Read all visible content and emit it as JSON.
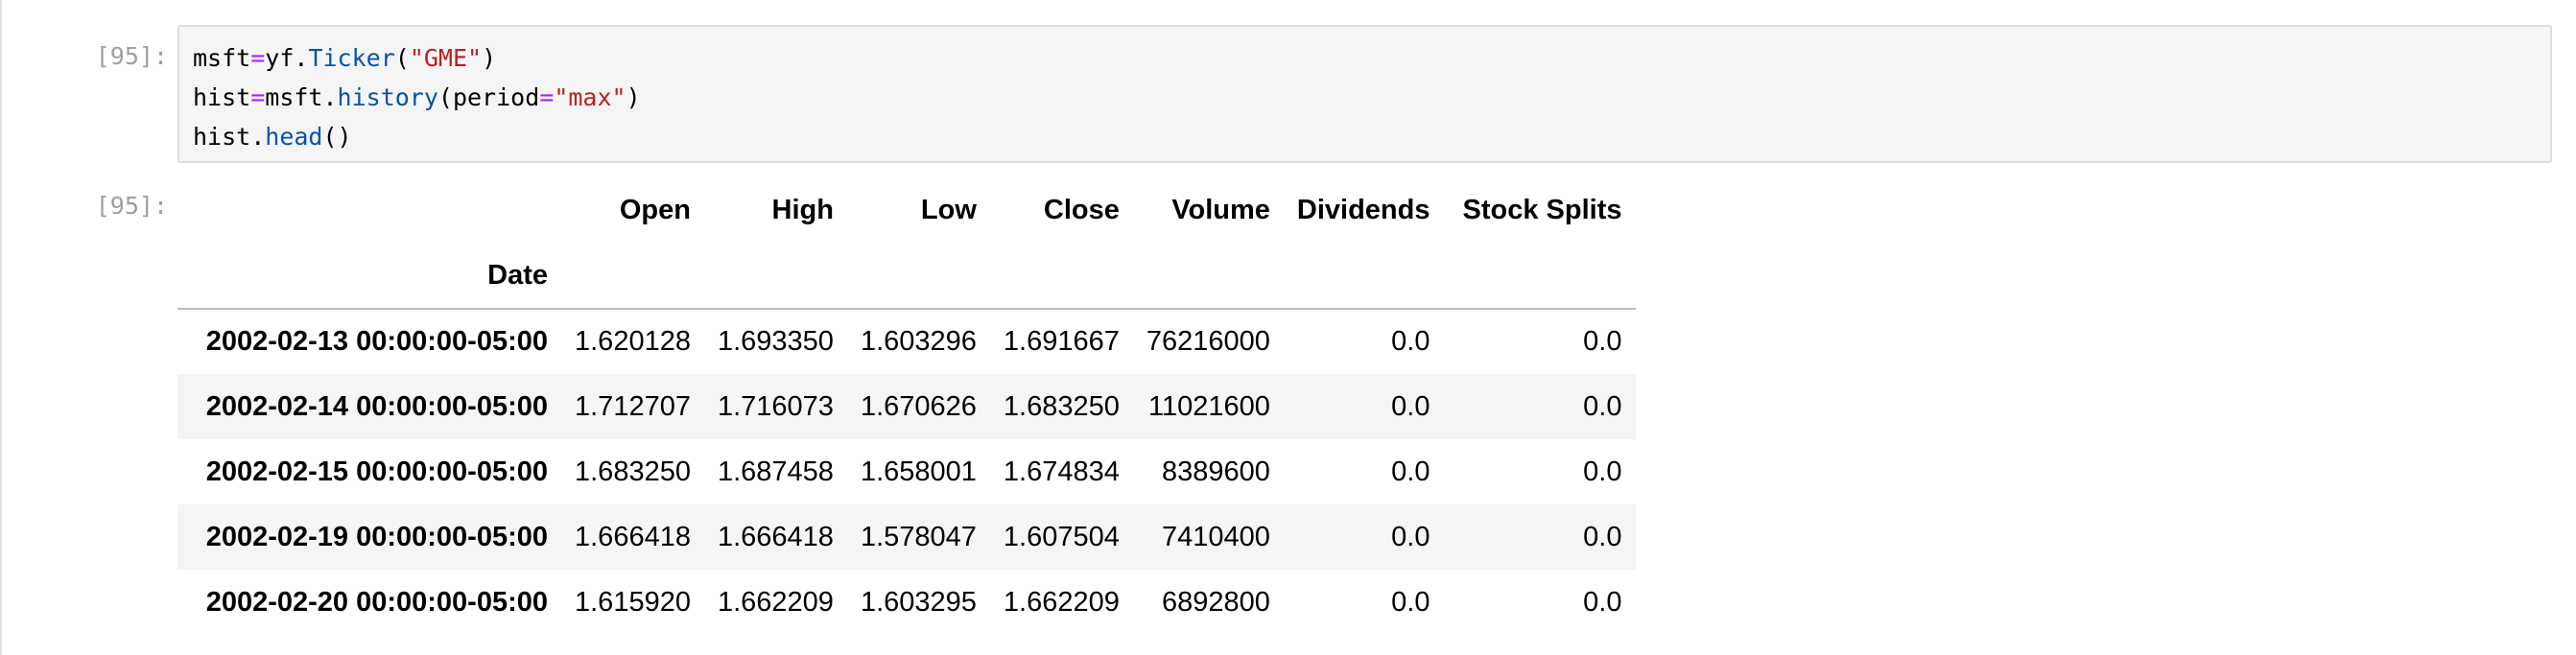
{
  "in_prompt": "[95]:",
  "out_prompt": "[95]:",
  "code": {
    "l1": {
      "a": "msft",
      "op": "=",
      "b": "yf.",
      "fn": "Ticker",
      "c": "(",
      "str": "\"GME\"",
      "d": ")"
    },
    "l2": {
      "a": "hist",
      "op1": "=",
      "b": "msft.",
      "fn": "history",
      "c": "(period",
      "op2": "=",
      "str": "\"max\"",
      "d": ")"
    },
    "l3": {
      "a": "hist.",
      "fn": "head",
      "b": "()"
    }
  },
  "table": {
    "index_name": "Date",
    "columns": [
      "Open",
      "High",
      "Low",
      "Close",
      "Volume",
      "Dividends",
      "Stock Splits"
    ],
    "rows": [
      {
        "date": "2002-02-13 00:00:00-05:00",
        "values": [
          "1.620128",
          "1.693350",
          "1.603296",
          "1.691667",
          "76216000",
          "0.0",
          "0.0"
        ]
      },
      {
        "date": "2002-02-14 00:00:00-05:00",
        "values": [
          "1.712707",
          "1.716073",
          "1.670626",
          "1.683250",
          "11021600",
          "0.0",
          "0.0"
        ]
      },
      {
        "date": "2002-02-15 00:00:00-05:00",
        "values": [
          "1.683250",
          "1.687458",
          "1.658001",
          "1.674834",
          "8389600",
          "0.0",
          "0.0"
        ]
      },
      {
        "date": "2002-02-19 00:00:00-05:00",
        "values": [
          "1.666418",
          "1.666418",
          "1.578047",
          "1.607504",
          "7410400",
          "0.0",
          "0.0"
        ]
      },
      {
        "date": "2002-02-20 00:00:00-05:00",
        "values": [
          "1.615920",
          "1.662209",
          "1.603295",
          "1.662209",
          "6892800",
          "0.0",
          "0.0"
        ]
      }
    ]
  }
}
